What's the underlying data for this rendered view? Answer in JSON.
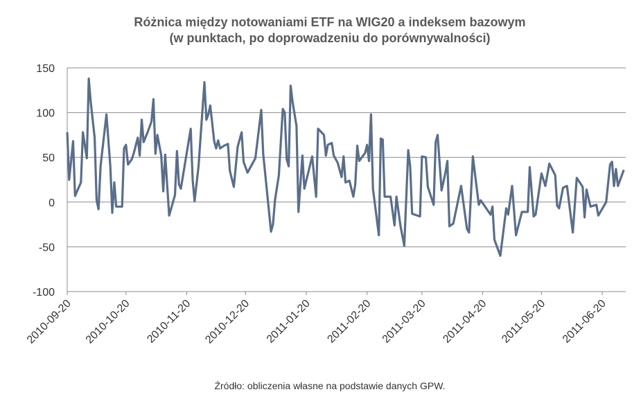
{
  "chart_data": {
    "type": "line",
    "title": [
      "Różnica między notowaniami ETF na WIG20 a indeksem bazowym",
      "(w punktach, po doprowadzeniu do porównywalności)"
    ],
    "source": "Źródło: obliczenia własne na podstawie danych GPW.",
    "x": [
      "2010-09-20",
      "2010-09-21",
      "2010-09-23",
      "2010-09-24",
      "2010-09-27",
      "2010-09-28",
      "2010-09-30",
      "2010-10-01",
      "2010-10-02",
      "2010-10-04",
      "2010-10-05",
      "2010-10-06",
      "2010-10-07",
      "2010-10-10",
      "2010-10-12",
      "2010-10-13",
      "2010-10-14",
      "2010-10-15",
      "2010-10-18",
      "2010-10-19",
      "2010-10-20",
      "2010-10-21",
      "2010-10-23",
      "2010-10-24",
      "2010-10-26",
      "2010-10-27",
      "2010-10-28",
      "2010-10-29",
      "2010-10-31",
      "2010-11-02",
      "2010-11-03",
      "2010-11-04",
      "2010-11-05",
      "2010-11-07",
      "2010-11-08",
      "2010-11-09",
      "2010-11-11",
      "2010-11-14",
      "2010-11-15",
      "2010-11-16",
      "2010-11-17",
      "2010-11-22",
      "2010-11-23",
      "2010-11-24",
      "2010-11-26",
      "2010-11-29",
      "2010-11-30",
      "2010-12-01",
      "2010-12-02",
      "2010-12-04",
      "2010-12-05",
      "2010-12-06",
      "2010-12-07",
      "2010-12-09",
      "2010-12-11",
      "2010-12-12",
      "2010-12-14",
      "2010-12-16",
      "2010-12-18",
      "2010-12-19",
      "2010-12-21",
      "2010-12-25",
      "2010-12-28",
      "2010-12-29",
      "2011-01-02",
      "2011-01-03",
      "2011-01-04",
      "2011-01-06",
      "2011-01-08",
      "2011-01-09",
      "2011-01-10",
      "2011-01-11",
      "2011-01-12",
      "2011-01-13",
      "2011-01-15",
      "2011-01-16",
      "2011-01-18",
      "2011-01-19",
      "2011-01-20",
      "2011-01-23",
      "2011-01-25",
      "2011-01-26",
      "2011-01-29",
      "2011-01-30",
      "2011-01-31",
      "2011-02-02",
      "2011-02-03",
      "2011-02-05",
      "2011-02-07",
      "2011-02-08",
      "2011-02-09",
      "2011-02-11",
      "2011-02-13",
      "2011-02-14",
      "2011-02-15",
      "2011-02-16",
      "2011-02-19",
      "2011-02-20",
      "2011-02-21",
      "2011-02-22",
      "2011-02-23",
      "2011-02-26",
      "2011-02-27",
      "2011-02-28",
      "2011-03-01",
      "2011-03-04",
      "2011-03-06",
      "2011-03-07",
      "2011-03-09",
      "2011-03-11",
      "2011-03-13",
      "2011-03-14",
      "2011-03-15",
      "2011-03-19",
      "2011-03-20",
      "2011-03-22",
      "2011-03-23",
      "2011-03-26",
      "2011-03-27",
      "2011-03-28",
      "2011-03-30",
      "2011-04-01",
      "2011-04-02",
      "2011-04-03",
      "2011-04-05",
      "2011-04-09",
      "2011-04-12",
      "2011-04-13",
      "2011-04-15",
      "2011-04-18",
      "2011-04-19",
      "2011-04-24",
      "2011-04-25",
      "2011-04-26",
      "2011-04-29",
      "2011-05-02",
      "2011-05-03",
      "2011-05-05",
      "2011-05-07",
      "2011-05-10",
      "2011-05-13",
      "2011-05-14",
      "2011-05-16",
      "2011-05-17",
      "2011-05-20",
      "2011-05-22",
      "2011-05-24",
      "2011-05-27",
      "2011-05-28",
      "2011-05-29",
      "2011-05-31",
      "2011-06-02",
      "2011-06-05",
      "2011-06-07",
      "2011-06-10",
      "2011-06-11",
      "2011-06-12",
      "2011-06-14",
      "2011-06-17",
      "2011-06-18",
      "2011-06-22",
      "2011-06-24",
      "2011-06-25",
      "2011-06-26",
      "2011-06-27",
      "2011-06-28",
      "2011-07-01"
    ],
    "series": [
      {
        "color": "#5a6e8a",
        "values": [
          78,
          25,
          68,
          7,
          22,
          78,
          49,
          138,
          112,
          72,
          2,
          -8,
          40,
          98,
          40,
          -12,
          22,
          -5,
          -5,
          60,
          64,
          42,
          48,
          55,
          72,
          52,
          92,
          67,
          78,
          90,
          115,
          54,
          75,
          52,
          12,
          53,
          -15,
          8,
          57,
          20,
          15,
          82,
          25,
          1,
          40,
          134,
          92,
          98,
          108,
          68,
          60,
          69,
          60,
          63,
          65,
          35,
          17,
          62,
          78,
          45,
          33,
          49,
          103,
          54,
          -33,
          -25,
          2,
          30,
          104,
          100,
          48,
          40,
          130,
          112,
          85,
          -11,
          52,
          15,
          24,
          51,
          6,
          82,
          75,
          52,
          64,
          66,
          52,
          44,
          28,
          51,
          22,
          24,
          6,
          20,
          63,
          46,
          55,
          64,
          46,
          98,
          15,
          -37,
          71,
          70,
          6,
          6,
          -26,
          6,
          -26,
          -49,
          58,
          40,
          -13,
          -16,
          51,
          50,
          17,
          -3,
          67,
          75,
          13,
          33,
          46,
          -27,
          -24,
          18,
          -30,
          -34,
          51,
          -3,
          2,
          -14,
          -5,
          -42,
          -60,
          -7,
          -14,
          18,
          -37,
          -11,
          -11,
          39,
          -16,
          -14,
          32,
          18,
          43,
          30,
          -4,
          -7,
          16,
          18,
          -34,
          27,
          17,
          -17,
          14,
          -5,
          -3,
          -15,
          0,
          42,
          45,
          18,
          37,
          18,
          36
        ]
      }
    ],
    "xlim": [
      "2010-09-20",
      "2011-07-02"
    ],
    "xticks": [
      "2010-09-20",
      "2010-10-20",
      "2010-11-20",
      "2010-12-20",
      "2011-01-20",
      "2011-02-20",
      "2011-03-20",
      "2011-04-20",
      "2011-05-20",
      "2011-06-20"
    ],
    "ylim": [
      -100,
      150
    ],
    "yticks": [
      -100,
      -50,
      0,
      50,
      100,
      150
    ],
    "grid": true
  }
}
